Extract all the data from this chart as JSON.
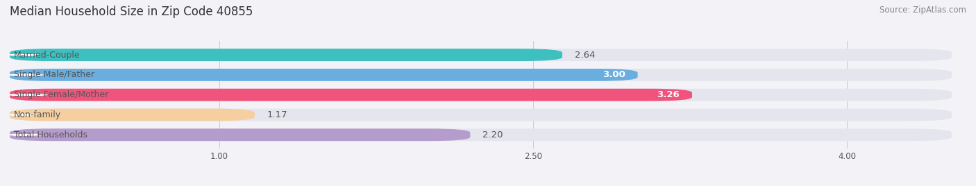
{
  "title": "Median Household Size in Zip Code 40855",
  "source": "Source: ZipAtlas.com",
  "categories": [
    "Married-Couple",
    "Single Male/Father",
    "Single Female/Mother",
    "Non-family",
    "Total Households"
  ],
  "values": [
    2.64,
    3.0,
    3.26,
    1.17,
    2.2
  ],
  "bar_colors": [
    "#3ebfc0",
    "#6aaee0",
    "#f0547c",
    "#f5cfa0",
    "#b49ccc"
  ],
  "value_inside": [
    false,
    true,
    true,
    false,
    false
  ],
  "label_bg_color": "#ffffff",
  "background_color": "#f2f2f7",
  "bar_bg_color": "#e5e5ee",
  "xmin": 0.0,
  "xmax": 4.5,
  "xticks": [
    1.0,
    2.5,
    4.0
  ],
  "bar_height": 0.62,
  "value_fontsize": 9.5,
  "label_fontsize": 9,
  "title_fontsize": 12,
  "source_fontsize": 8.5,
  "text_color": "#555555",
  "white_text": "#ffffff",
  "grid_color": "#cccccc"
}
